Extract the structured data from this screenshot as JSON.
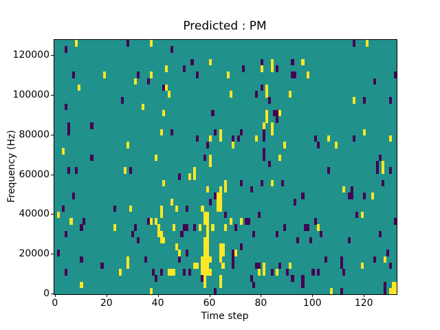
{
  "title": "Predicted : PM",
  "xlabel": "Time step",
  "ylabel": "Frequency (Hz)",
  "colors": {
    "figure_background": "#ffffff",
    "heatmap_background": "#21918c",
    "high": "#fde725",
    "low": "#440154",
    "axis": "#000000",
    "text": "#000000"
  },
  "chart_data": {
    "type": "heatmap",
    "title": "Predicted : PM",
    "xlabel": "Time step",
    "ylabel": "Frequency (Hz)",
    "x_ticks": [
      0,
      20,
      40,
      60,
      80,
      100,
      120
    ],
    "y_ticks": [
      0,
      20000,
      40000,
      60000,
      80000,
      100000,
      120000
    ],
    "n_time_steps": 133,
    "n_freq_bins": 40,
    "freq_min_hz": 0,
    "freq_max_hz": 128000,
    "grid": false,
    "legend": "none",
    "background_value": "mid",
    "cell_values": {
      "1": "high (yellow)",
      "0": "low (dark purple)"
    },
    "cells": [
      [
        8,
        39,
        1
      ],
      [
        28,
        39,
        0
      ],
      [
        37,
        39,
        1
      ],
      [
        116,
        39,
        0
      ],
      [
        121,
        39,
        1
      ],
      [
        4,
        38,
        0
      ],
      [
        45,
        38,
        0
      ],
      [
        53,
        36,
        0
      ],
      [
        60,
        36,
        1
      ],
      [
        80,
        36,
        0
      ],
      [
        84,
        36,
        1
      ],
      [
        92,
        36,
        0
      ],
      [
        96,
        36,
        1
      ],
      [
        43,
        35,
        1
      ],
      [
        50,
        35,
        0
      ],
      [
        73,
        35,
        0
      ],
      [
        80,
        35,
        1
      ],
      [
        84,
        35,
        1
      ],
      [
        86,
        35,
        0
      ],
      [
        7,
        34,
        0
      ],
      [
        19,
        34,
        1
      ],
      [
        32,
        34,
        0
      ],
      [
        37,
        34,
        1
      ],
      [
        55,
        34,
        0
      ],
      [
        67,
        34,
        1
      ],
      [
        92,
        34,
        0
      ],
      [
        93,
        34,
        0
      ],
      [
        98,
        34,
        1
      ],
      [
        132,
        34,
        0
      ],
      [
        31,
        33,
        1
      ],
      [
        36,
        33,
        0
      ],
      [
        124,
        33,
        0
      ],
      [
        9,
        32,
        1
      ],
      [
        42,
        32,
        0
      ],
      [
        43,
        32,
        1
      ],
      [
        80,
        32,
        0
      ],
      [
        82,
        32,
        1
      ],
      [
        44,
        31,
        1
      ],
      [
        68,
        31,
        1
      ],
      [
        78,
        31,
        0
      ],
      [
        82,
        31,
        1
      ],
      [
        91,
        31,
        1
      ],
      [
        26,
        30,
        0
      ],
      [
        83,
        30,
        0
      ],
      [
        116,
        30,
        1
      ],
      [
        120,
        30,
        0
      ],
      [
        130,
        30,
        0
      ],
      [
        4,
        29,
        0
      ],
      [
        34,
        29,
        1
      ],
      [
        42,
        28,
        1
      ],
      [
        61,
        28,
        0
      ],
      [
        82,
        28,
        1
      ],
      [
        85,
        28,
        0
      ],
      [
        86,
        28,
        0
      ],
      [
        87,
        28,
        1
      ],
      [
        82,
        27,
        1
      ],
      [
        86,
        27,
        0
      ],
      [
        5,
        26,
        0
      ],
      [
        14,
        26,
        0
      ],
      [
        81,
        26,
        1
      ],
      [
        84,
        26,
        1
      ],
      [
        5,
        25,
        0
      ],
      [
        41,
        25,
        1
      ],
      [
        45,
        25,
        0
      ],
      [
        62,
        25,
        0
      ],
      [
        64,
        25,
        1
      ],
      [
        72,
        25,
        0
      ],
      [
        81,
        25,
        0
      ],
      [
        84,
        25,
        1
      ],
      [
        120,
        25,
        1
      ],
      [
        55,
        24,
        0
      ],
      [
        60,
        24,
        1
      ],
      [
        64,
        24,
        1
      ],
      [
        69,
        24,
        0
      ],
      [
        71,
        24,
        0
      ],
      [
        78,
        24,
        1
      ],
      [
        81,
        24,
        0
      ],
      [
        101,
        24,
        0
      ],
      [
        106,
        24,
        1
      ],
      [
        116,
        24,
        0
      ],
      [
        130,
        24,
        1
      ],
      [
        28,
        23,
        1
      ],
      [
        59,
        23,
        0
      ],
      [
        69,
        23,
        1
      ],
      [
        89,
        23,
        1
      ],
      [
        102,
        23,
        0
      ],
      [
        109,
        23,
        1
      ],
      [
        3,
        22,
        1
      ],
      [
        81,
        22,
        0
      ],
      [
        14,
        21,
        0
      ],
      [
        39,
        21,
        1
      ],
      [
        58,
        21,
        0
      ],
      [
        60,
        21,
        1
      ],
      [
        81,
        21,
        0
      ],
      [
        87,
        21,
        1
      ],
      [
        126,
        21,
        0
      ],
      [
        60,
        20,
        1
      ],
      [
        83,
        20,
        0
      ],
      [
        125,
        20,
        0
      ],
      [
        127,
        20,
        1
      ],
      [
        5,
        19,
        0
      ],
      [
        8,
        19,
        0
      ],
      [
        27,
        19,
        1
      ],
      [
        29,
        19,
        0
      ],
      [
        54,
        19,
        1
      ],
      [
        106,
        19,
        0
      ],
      [
        125,
        19,
        0
      ],
      [
        127,
        19,
        1
      ],
      [
        130,
        19,
        0
      ],
      [
        48,
        18,
        0
      ],
      [
        52,
        18,
        1
      ],
      [
        54,
        18,
        1
      ],
      [
        42,
        17,
        1
      ],
      [
        66,
        17,
        1
      ],
      [
        72,
        17,
        0
      ],
      [
        80,
        17,
        0
      ],
      [
        84,
        17,
        1
      ],
      [
        88,
        17,
        0
      ],
      [
        127,
        17,
        0
      ],
      [
        59,
        16,
        1
      ],
      [
        64,
        16,
        1
      ],
      [
        66,
        16,
        1
      ],
      [
        76,
        16,
        0
      ],
      [
        112,
        16,
        1
      ],
      [
        115,
        16,
        0
      ],
      [
        7,
        15,
        0
      ],
      [
        62,
        15,
        0
      ],
      [
        63,
        15,
        1
      ],
      [
        64,
        15,
        1
      ],
      [
        96,
        15,
        0
      ],
      [
        114,
        15,
        0
      ],
      [
        115,
        15,
        0
      ],
      [
        120,
        15,
        0
      ],
      [
        123,
        15,
        1
      ],
      [
        45,
        14,
        1
      ],
      [
        60,
        14,
        0
      ],
      [
        63,
        14,
        1
      ],
      [
        64,
        14,
        1
      ],
      [
        93,
        14,
        0
      ],
      [
        3,
        13,
        0
      ],
      [
        23,
        13,
        0
      ],
      [
        29,
        13,
        1
      ],
      [
        41,
        13,
        1
      ],
      [
        47,
        13,
        1
      ],
      [
        51,
        13,
        0
      ],
      [
        57,
        13,
        1
      ],
      [
        63,
        13,
        1
      ],
      [
        64,
        13,
        1
      ],
      [
        1,
        12,
        1
      ],
      [
        41,
        12,
        1
      ],
      [
        58,
        12,
        1
      ],
      [
        59,
        12,
        1
      ],
      [
        66,
        12,
        0
      ],
      [
        79,
        12,
        0
      ],
      [
        117,
        12,
        0
      ],
      [
        119,
        12,
        1
      ],
      [
        6,
        11,
        1
      ],
      [
        11,
        11,
        0
      ],
      [
        36,
        11,
        0
      ],
      [
        37,
        11,
        1
      ],
      [
        39,
        11,
        1
      ],
      [
        58,
        11,
        1
      ],
      [
        59,
        11,
        1
      ],
      [
        68,
        11,
        1
      ],
      [
        72,
        11,
        1
      ],
      [
        74,
        11,
        0
      ],
      [
        75,
        11,
        0
      ],
      [
        101,
        11,
        0
      ],
      [
        132,
        11,
        0
      ],
      [
        10,
        10,
        0
      ],
      [
        23,
        10,
        1
      ],
      [
        31,
        10,
        0
      ],
      [
        40,
        10,
        1
      ],
      [
        46,
        10,
        1
      ],
      [
        50,
        10,
        0
      ],
      [
        51,
        10,
        0
      ],
      [
        54,
        10,
        0
      ],
      [
        56,
        10,
        1
      ],
      [
        59,
        10,
        1
      ],
      [
        61,
        10,
        1
      ],
      [
        66,
        10,
        1
      ],
      [
        70,
        10,
        0
      ],
      [
        89,
        10,
        0
      ],
      [
        97,
        10,
        0
      ],
      [
        98,
        10,
        0
      ],
      [
        102,
        10,
        1
      ],
      [
        4,
        9,
        0
      ],
      [
        30,
        9,
        0
      ],
      [
        40,
        9,
        1
      ],
      [
        41,
        9,
        1
      ],
      [
        49,
        9,
        0
      ],
      [
        59,
        9,
        1
      ],
      [
        77,
        9,
        0
      ],
      [
        86,
        9,
        0
      ],
      [
        103,
        9,
        0
      ],
      [
        126,
        9,
        0
      ],
      [
        32,
        8,
        0
      ],
      [
        41,
        8,
        1
      ],
      [
        42,
        8,
        1
      ],
      [
        58,
        8,
        1
      ],
      [
        59,
        8,
        1
      ],
      [
        94,
        8,
        0
      ],
      [
        99,
        8,
        0
      ],
      [
        114,
        8,
        0
      ],
      [
        47,
        7,
        1
      ],
      [
        58,
        7,
        1
      ],
      [
        59,
        7,
        1
      ],
      [
        64,
        7,
        1
      ],
      [
        65,
        7,
        1
      ],
      [
        72,
        7,
        0
      ],
      [
        1,
        6,
        0
      ],
      [
        48,
        6,
        1
      ],
      [
        51,
        6,
        0
      ],
      [
        58,
        6,
        1
      ],
      [
        59,
        6,
        1
      ],
      [
        64,
        6,
        1
      ],
      [
        65,
        6,
        1
      ],
      [
        69,
        6,
        0
      ],
      [
        70,
        6,
        1
      ],
      [
        129,
        6,
        0
      ],
      [
        10,
        5,
        0
      ],
      [
        28,
        5,
        1
      ],
      [
        35,
        5,
        0
      ],
      [
        48,
        5,
        0
      ],
      [
        57,
        5,
        1
      ],
      [
        58,
        5,
        1
      ],
      [
        59,
        5,
        1
      ],
      [
        60,
        5,
        1
      ],
      [
        64,
        5,
        1
      ],
      [
        69,
        5,
        0
      ],
      [
        105,
        5,
        0
      ],
      [
        111,
        5,
        0
      ],
      [
        124,
        5,
        0
      ],
      [
        128,
        5,
        1
      ],
      [
        18,
        4,
        0
      ],
      [
        28,
        4,
        1
      ],
      [
        54,
        4,
        1
      ],
      [
        55,
        4,
        1
      ],
      [
        57,
        4,
        1
      ],
      [
        58,
        4,
        1
      ],
      [
        59,
        4,
        1
      ],
      [
        65,
        4,
        1
      ],
      [
        69,
        4,
        0
      ],
      [
        78,
        4,
        0
      ],
      [
        79,
        4,
        0
      ],
      [
        81,
        4,
        1
      ],
      [
        87,
        4,
        0
      ],
      [
        91,
        4,
        1
      ],
      [
        111,
        4,
        0
      ],
      [
        119,
        4,
        1
      ],
      [
        130,
        4,
        0
      ],
      [
        4,
        3,
        0
      ],
      [
        25,
        3,
        1
      ],
      [
        38,
        3,
        0
      ],
      [
        41,
        3,
        0
      ],
      [
        44,
        3,
        1
      ],
      [
        45,
        3,
        1
      ],
      [
        46,
        3,
        1
      ],
      [
        50,
        3,
        0
      ],
      [
        52,
        3,
        0
      ],
      [
        57,
        3,
        1
      ],
      [
        58,
        3,
        1
      ],
      [
        59,
        3,
        1
      ],
      [
        60,
        3,
        1
      ],
      [
        79,
        3,
        1
      ],
      [
        81,
        3,
        1
      ],
      [
        84,
        3,
        0
      ],
      [
        86,
        3,
        1
      ],
      [
        90,
        3,
        0
      ],
      [
        100,
        3,
        0
      ],
      [
        102,
        3,
        0
      ],
      [
        112,
        3,
        0
      ],
      [
        39,
        2,
        0
      ],
      [
        57,
        2,
        0
      ],
      [
        58,
        2,
        1
      ],
      [
        64,
        2,
        1
      ],
      [
        76,
        2,
        0
      ],
      [
        92,
        2,
        0
      ],
      [
        96,
        2,
        0
      ],
      [
        10,
        1,
        1
      ],
      [
        58,
        1,
        1
      ],
      [
        64,
        1,
        1
      ],
      [
        77,
        1,
        0
      ],
      [
        96,
        1,
        0
      ],
      [
        128,
        1,
        0
      ],
      [
        131,
        1,
        1
      ],
      [
        132,
        1,
        1
      ],
      [
        37,
        0,
        1
      ],
      [
        62,
        0,
        0
      ],
      [
        107,
        0,
        1
      ],
      [
        111,
        0,
        0
      ],
      [
        128,
        0,
        0
      ],
      [
        130,
        0,
        1
      ],
      [
        131,
        0,
        1
      ],
      [
        132,
        0,
        1
      ]
    ]
  }
}
